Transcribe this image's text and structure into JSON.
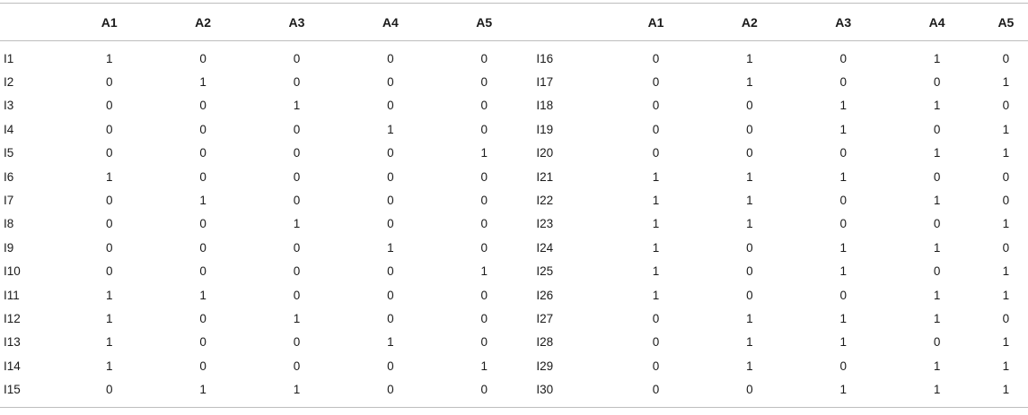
{
  "table": {
    "headers": [
      "",
      "A1",
      "A2",
      "A3",
      "A4",
      "A5",
      "",
      "A1",
      "A2",
      "A3",
      "A4",
      "A5"
    ],
    "rows": [
      [
        "I1",
        "1",
        "0",
        "0",
        "0",
        "0",
        "I16",
        "0",
        "1",
        "0",
        "1",
        "0"
      ],
      [
        "I2",
        "0",
        "1",
        "0",
        "0",
        "0",
        "I17",
        "0",
        "1",
        "0",
        "0",
        "1"
      ],
      [
        "I3",
        "0",
        "0",
        "1",
        "0",
        "0",
        "I18",
        "0",
        "0",
        "1",
        "1",
        "0"
      ],
      [
        "I4",
        "0",
        "0",
        "0",
        "1",
        "0",
        "I19",
        "0",
        "0",
        "1",
        "0",
        "1"
      ],
      [
        "I5",
        "0",
        "0",
        "0",
        "0",
        "1",
        "I20",
        "0",
        "0",
        "0",
        "1",
        "1"
      ],
      [
        "I6",
        "1",
        "0",
        "0",
        "0",
        "0",
        "I21",
        "1",
        "1",
        "1",
        "0",
        "0"
      ],
      [
        "I7",
        "0",
        "1",
        "0",
        "0",
        "0",
        "I22",
        "1",
        "1",
        "0",
        "1",
        "0"
      ],
      [
        "I8",
        "0",
        "0",
        "1",
        "0",
        "0",
        "I23",
        "1",
        "1",
        "0",
        "0",
        "1"
      ],
      [
        "I9",
        "0",
        "0",
        "0",
        "1",
        "0",
        "I24",
        "1",
        "0",
        "1",
        "1",
        "0"
      ],
      [
        "I10",
        "0",
        "0",
        "0",
        "0",
        "1",
        "I25",
        "1",
        "0",
        "1",
        "0",
        "1"
      ],
      [
        "I11",
        "1",
        "1",
        "0",
        "0",
        "0",
        "I26",
        "1",
        "0",
        "0",
        "1",
        "1"
      ],
      [
        "I12",
        "1",
        "0",
        "1",
        "0",
        "0",
        "I27",
        "0",
        "1",
        "1",
        "1",
        "0"
      ],
      [
        "I13",
        "1",
        "0",
        "0",
        "1",
        "0",
        "I28",
        "0",
        "1",
        "1",
        "0",
        "1"
      ],
      [
        "I14",
        "1",
        "0",
        "0",
        "0",
        "1",
        "I29",
        "0",
        "1",
        "0",
        "1",
        "1"
      ],
      [
        "I15",
        "0",
        "1",
        "1",
        "0",
        "0",
        "I30",
        "0",
        "0",
        "1",
        "1",
        "1"
      ]
    ]
  }
}
